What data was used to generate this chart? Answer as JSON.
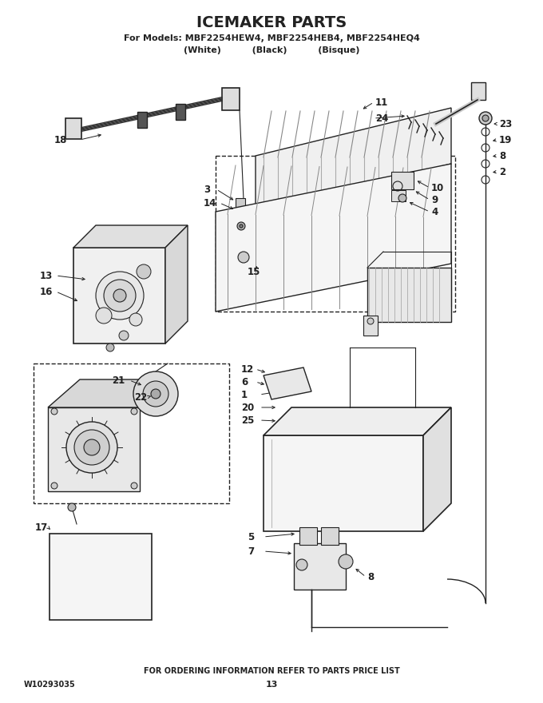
{
  "title": "ICEMAKER PARTS",
  "subtitle1": "For Models: MBF2254HEW4, MBF2254HEB4, MBF2254HEQ4",
  "subtitle2": "(White)          (Black)          (Bisque)",
  "footer1": "FOR ORDERING INFORMATION REFER TO PARTS PRICE LIST",
  "footer2_left": "W10293035",
  "footer2_center": "13",
  "bg_color": "#ffffff",
  "line_color": "#222222",
  "text_color": "#222222",
  "label_fs": 8.5,
  "lw_leader": 0.7
}
